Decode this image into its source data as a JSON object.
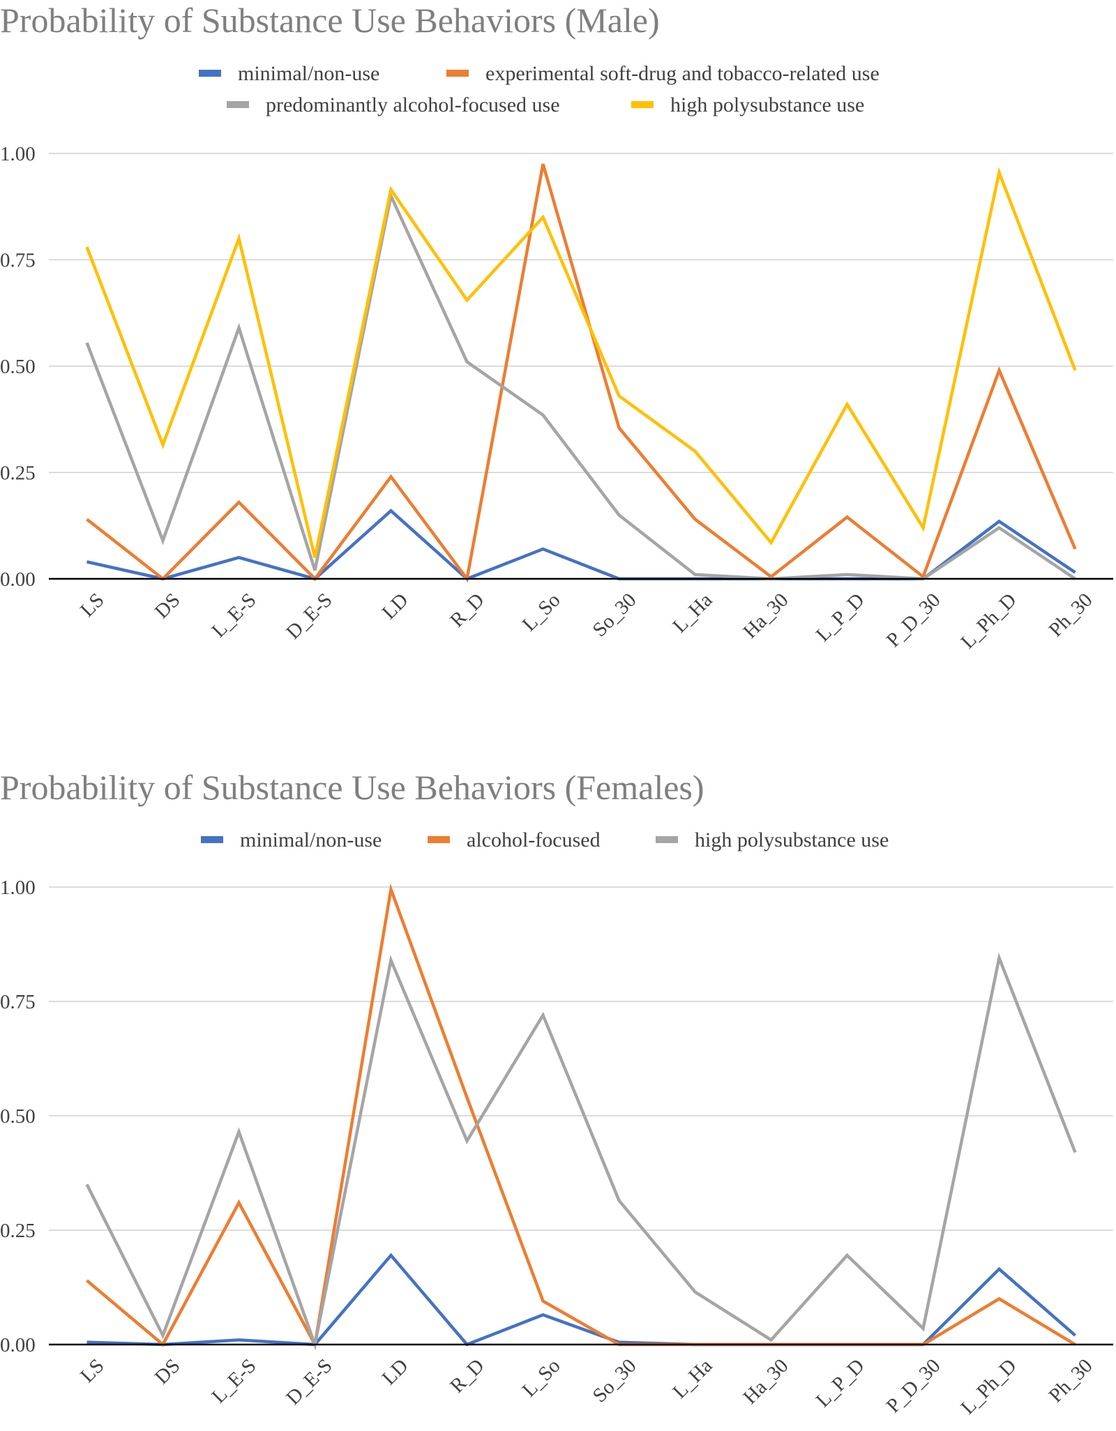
{
  "chart_data": [
    {
      "type": "line",
      "title": "Probability of Substance Use Behaviors (Male)",
      "categories": [
        "LS",
        "DS",
        "L_E-S",
        "D_E-S",
        "LD",
        "R_D",
        "L_So",
        "So_30",
        "L_Ha",
        "Ha_30",
        "L_P_D",
        "P_D_30",
        "L_Ph_D",
        "Ph_30"
      ],
      "ylim": [
        0,
        1
      ],
      "yticks": [
        "0.00",
        "0.25",
        "0.50",
        "0.75",
        "1.00"
      ],
      "grid": true,
      "legend_position": "top",
      "series": [
        {
          "name": "minimal/non-use",
          "color": "#4472c4",
          "values": [
            0.04,
            0.0,
            0.05,
            0.0,
            0.16,
            0.0,
            0.07,
            0.0,
            0.0,
            0.0,
            0.0,
            0.0,
            0.135,
            0.015
          ]
        },
        {
          "name": "experimental soft-drug and tobacco-related use",
          "color": "#ed7d31",
          "values": [
            0.14,
            0.0,
            0.18,
            0.0,
            0.24,
            0.0,
            0.975,
            0.355,
            0.14,
            0.005,
            0.145,
            0.005,
            0.49,
            0.07
          ]
        },
        {
          "name": "predominantly alcohol-focused use",
          "color": "#a5a5a5",
          "values": [
            0.555,
            0.09,
            0.59,
            0.02,
            0.9,
            0.51,
            0.385,
            0.15,
            0.01,
            0.0,
            0.01,
            0.0,
            0.12,
            0.0
          ]
        },
        {
          "name": "high polysubstance use",
          "color": "#ffc000",
          "values": [
            0.78,
            0.315,
            0.8,
            0.05,
            0.915,
            0.655,
            0.85,
            0.43,
            0.3,
            0.085,
            0.41,
            0.12,
            0.955,
            0.49
          ]
        }
      ]
    },
    {
      "type": "line",
      "title": "Probability of Substance Use Behaviors (Females)",
      "categories": [
        "LS",
        "DS",
        "L_E-S",
        "D_E-S",
        "LD",
        "R_D",
        "L_So",
        "So_30",
        "L_Ha",
        "Ha_30",
        "L_P_D",
        "P_D_30",
        "L_Ph_D",
        "Ph_30"
      ],
      "ylim": [
        0,
        1
      ],
      "yticks": [
        "0.00",
        "0.25",
        "0.50",
        "0.75",
        "1.00"
      ],
      "grid": true,
      "legend_position": "top",
      "series": [
        {
          "name": "minimal/non-use",
          "color": "#4472c4",
          "values": [
            0.005,
            0.0,
            0.01,
            0.0,
            0.195,
            0.0,
            0.065,
            0.005,
            0.0,
            0.0,
            0.0,
            0.0,
            0.165,
            0.02
          ]
        },
        {
          "name": "alcohol-focused",
          "color": "#ed7d31",
          "values": [
            0.14,
            0.0,
            0.31,
            0.0,
            0.995,
            0.54,
            0.095,
            0.0,
            0.0,
            0.0,
            0.0,
            0.0,
            0.1,
            0.0
          ]
        },
        {
          "name": "high polysubstance use",
          "color": "#a5a5a5",
          "values": [
            0.35,
            0.02,
            0.465,
            0.0,
            0.84,
            0.445,
            0.72,
            0.315,
            0.115,
            0.01,
            0.195,
            0.035,
            0.845,
            0.42
          ]
        }
      ]
    }
  ]
}
